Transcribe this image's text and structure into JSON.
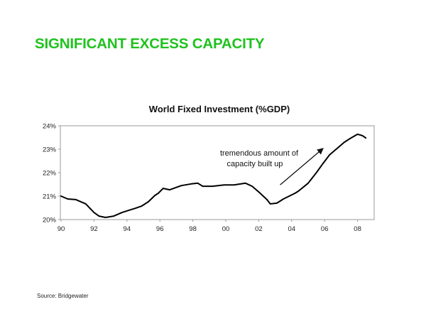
{
  "slide": {
    "title": "SIGNIFICANT EXCESS CAPACITY",
    "title_color": "#1fc21f",
    "source": "Source:  Bridgewater"
  },
  "chart_data": {
    "type": "line",
    "title": "World Fixed Investment (%GDP)",
    "xlabel": "",
    "ylabel": "",
    "xlim": [
      1990,
      2009.0
    ],
    "ylim": [
      20,
      24
    ],
    "grid": false,
    "legend": null,
    "x_ticks": [
      1990,
      1992,
      1994,
      1996,
      1998,
      2000,
      2002,
      2004,
      2006,
      2008
    ],
    "x_tick_labels": [
      "90",
      "92",
      "94",
      "96",
      "98",
      "00",
      "02",
      "04",
      "06",
      "08"
    ],
    "y_ticks": [
      20,
      21,
      22,
      23,
      24
    ],
    "y_tick_labels": [
      "20%",
      "21%",
      "22%",
      "23%",
      "24%"
    ],
    "series": [
      {
        "name": "World Fixed Investment (%GDP)",
        "color": "#000000",
        "x": [
          1990.0,
          1990.4,
          1990.9,
          1991.2,
          1991.5,
          1991.7,
          1992.0,
          1992.3,
          1992.7,
          1993.2,
          1993.7,
          1994.1,
          1994.5,
          1994.9,
          1995.3,
          1995.7,
          1995.9,
          1996.2,
          1996.6,
          1997.3,
          1997.9,
          1998.3,
          1998.6,
          1999.2,
          1999.9,
          2000.5,
          2001.2,
          2001.6,
          2002.0,
          2002.5,
          2002.7,
          2003.1,
          2003.5,
          2004.2,
          2004.4,
          2005.0,
          2005.5,
          2005.9,
          2006.3,
          2006.8,
          2007.2,
          2007.6,
          2008.0,
          2008.3,
          2008.5
        ],
        "values": [
          21.0,
          20.88,
          20.85,
          20.76,
          20.67,
          20.52,
          20.3,
          20.15,
          20.09,
          20.15,
          20.3,
          20.39,
          20.48,
          20.58,
          20.76,
          21.03,
          21.12,
          21.33,
          21.27,
          21.45,
          21.52,
          21.55,
          21.42,
          21.42,
          21.48,
          21.48,
          21.55,
          21.42,
          21.18,
          20.85,
          20.67,
          20.7,
          20.88,
          21.12,
          21.21,
          21.55,
          22.0,
          22.39,
          22.76,
          23.06,
          23.3,
          23.48,
          23.64,
          23.58,
          23.48
        ]
      }
    ],
    "annotations": [
      {
        "text_lines": [
          "tremendous amount of",
          "capacity built up"
        ],
        "arrow_from": [
          2003.3,
          21.48
        ],
        "arrow_to": [
          2005.9,
          23.03
        ]
      }
    ]
  }
}
